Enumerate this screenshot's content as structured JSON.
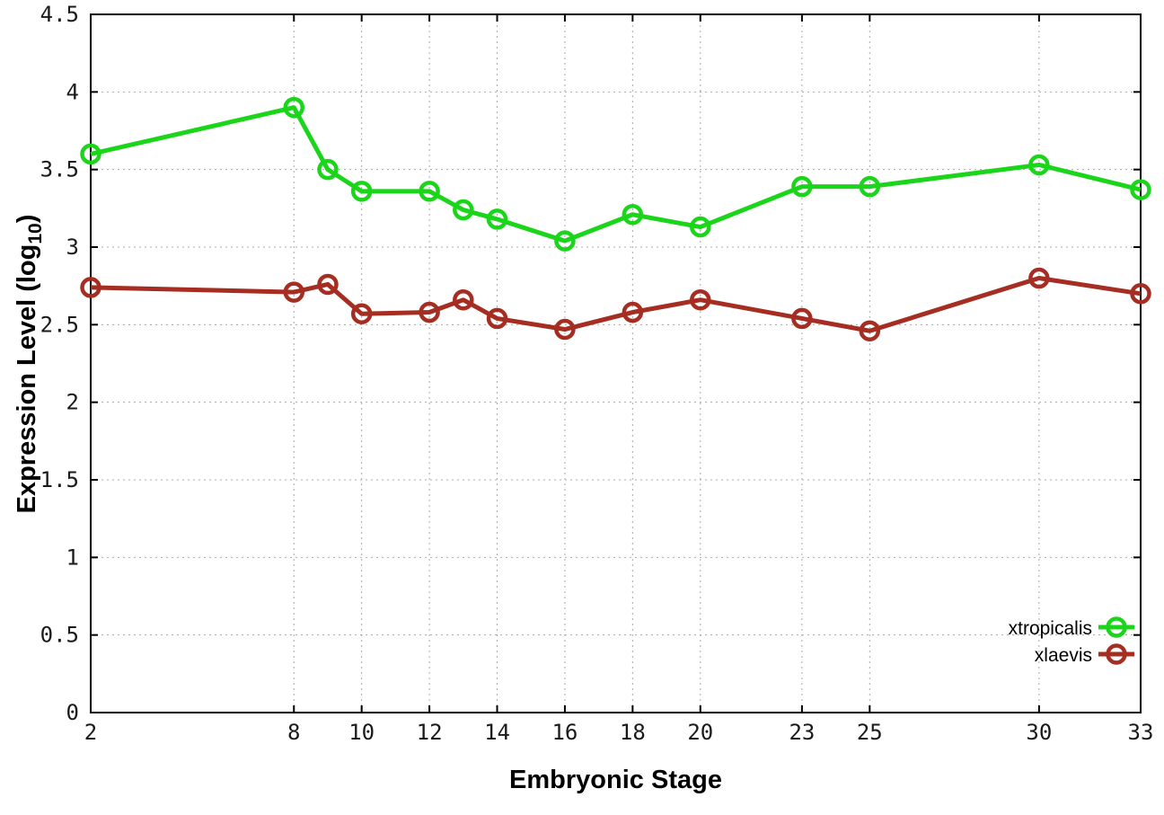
{
  "chart_data": {
    "type": "line",
    "title": "",
    "xlabel": "Embryonic Stage",
    "ylabel_main": "Expression Level (log",
    "ylabel_sub": "10",
    "ylabel_close": ")",
    "xlim": [
      2,
      33
    ],
    "ylim": [
      0,
      4.5
    ],
    "grid": true,
    "marker": "open-circle",
    "x_ticks": [
      {
        "v": 2,
        "label": "2"
      },
      {
        "v": 8,
        "label": "8"
      },
      {
        "v": 10,
        "label": "10"
      },
      {
        "v": 12,
        "label": "12"
      },
      {
        "v": 14,
        "label": "14"
      },
      {
        "v": 16,
        "label": "16"
      },
      {
        "v": 18,
        "label": "18"
      },
      {
        "v": 20,
        "label": "20"
      },
      {
        "v": 23,
        "label": "23"
      },
      {
        "v": 25,
        "label": "25"
      },
      {
        "v": 30,
        "label": "30"
      },
      {
        "v": 33,
        "label": "33"
      }
    ],
    "y_ticks": [
      {
        "v": 0,
        "label": "0"
      },
      {
        "v": 0.5,
        "label": "0.5"
      },
      {
        "v": 1,
        "label": "1"
      },
      {
        "v": 1.5,
        "label": "1.5"
      },
      {
        "v": 2,
        "label": "2"
      },
      {
        "v": 2.5,
        "label": "2.5"
      },
      {
        "v": 3,
        "label": "3"
      },
      {
        "v": 3.5,
        "label": "3.5"
      },
      {
        "v": 4,
        "label": "4"
      },
      {
        "v": 4.5,
        "label": "4.5"
      }
    ],
    "x": [
      2,
      8,
      9,
      10,
      12,
      13,
      14,
      16,
      18,
      20,
      23,
      25,
      30,
      33
    ],
    "series": [
      {
        "name": "xtropicalis",
        "color": "#1bd51b",
        "values": [
          3.6,
          3.9,
          3.5,
          3.36,
          3.36,
          3.24,
          3.18,
          3.04,
          3.21,
          3.13,
          3.39,
          3.39,
          3.53,
          3.37
        ]
      },
      {
        "name": "xlaevis",
        "color": "#a52d22",
        "values": [
          2.74,
          2.71,
          2.76,
          2.57,
          2.58,
          2.66,
          2.54,
          2.47,
          2.58,
          2.66,
          2.54,
          2.46,
          2.8,
          2.7
        ]
      }
    ],
    "legend": {
      "position": "bottom-right",
      "entries": [
        "xtropicalis",
        "xlaevis"
      ]
    },
    "colors": {
      "grid": "#a8a8a8",
      "border": "#000000",
      "background": "#ffffff"
    }
  }
}
